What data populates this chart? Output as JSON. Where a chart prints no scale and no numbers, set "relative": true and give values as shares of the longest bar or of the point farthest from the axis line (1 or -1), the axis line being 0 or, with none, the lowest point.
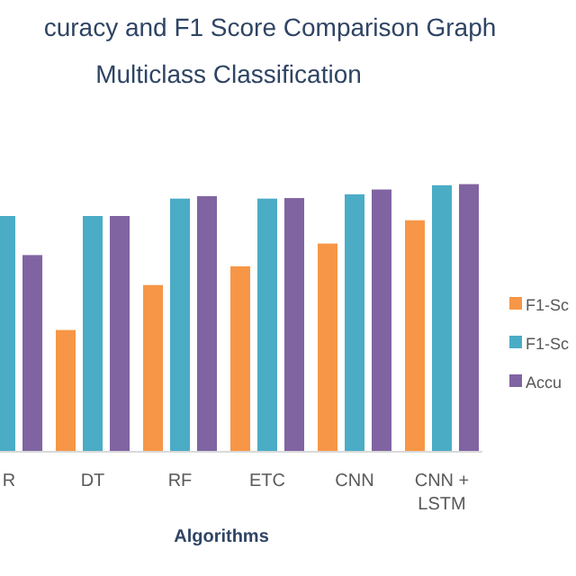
{
  "chart_data": {
    "type": "bar",
    "title": "curacy and F1 Score Comparison Graph",
    "subtitle": "Multiclass Classification",
    "xlabel": "Algorithms",
    "relative": true,
    "legend": "right",
    "categories": [
      "R",
      "DT",
      "RF",
      "ETC",
      "CNN",
      "CNN + LSTM"
    ],
    "series": [
      {
        "name": "F1-Sc",
        "color": "#f79646",
        "values": [
          null,
          0.455,
          0.623,
          0.693,
          0.778,
          0.865
        ]
      },
      {
        "name": "F1-Sc",
        "color": "#4bacc6",
        "values": [
          0.881,
          0.881,
          0.946,
          0.946,
          0.962,
          0.996
        ]
      },
      {
        "name": "Accu",
        "color": "#8064a2",
        "values": [
          0.735,
          0.881,
          0.955,
          0.948,
          0.98,
          1
        ]
      }
    ]
  }
}
